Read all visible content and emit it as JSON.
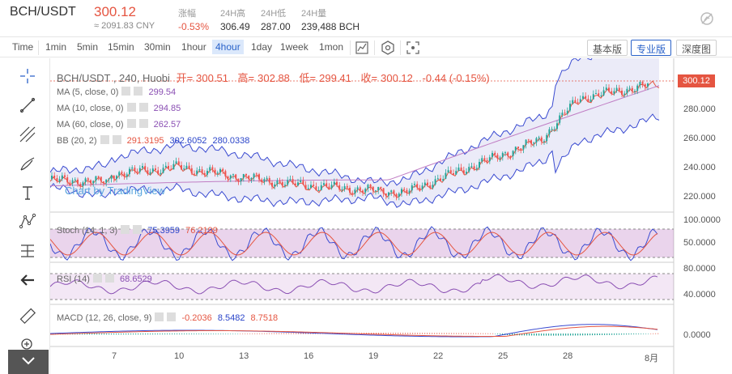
{
  "header": {
    "pair": "BCH/USDT",
    "price": "300.12",
    "cny": "≈ 2091.83 CNY",
    "stats": [
      {
        "label": "涨幅",
        "value": "-0.53%",
        "red": true
      },
      {
        "label": "24H高",
        "value": "306.49",
        "red": false
      },
      {
        "label": "24H低",
        "value": "287.00",
        "red": false
      },
      {
        "label": "24H量",
        "value": "239,488 BCH",
        "red": false
      }
    ]
  },
  "toolbar": {
    "intervals": [
      "Time",
      "1min",
      "5min",
      "15min",
      "30min",
      "1hour",
      "4hour",
      "1day",
      "1week",
      "1mon"
    ],
    "active_interval": "4hour",
    "views": [
      "基本版",
      "专业版",
      "深度图"
    ],
    "active_view": "专业版"
  },
  "legend": {
    "main": "BCH/USDT , 240, Huobi",
    "open_label": "开=",
    "open": "300.51",
    "high_label": "高=",
    "high": "302.88",
    "low_label": "低=",
    "low": "299.41",
    "close_label": "收=",
    "close": "300.12",
    "change": "-0.44 (-0.15%)",
    "ma5_label": "MA (5, close, 0)",
    "ma5": "299.54",
    "ma10_label": "MA (10, close, 0)",
    "ma10": "294.85",
    "ma60_label": "MA (60, close, 0)",
    "ma60": "262.57",
    "bb_label": "BB (20, 2)",
    "bb_mid": "291.3195",
    "bb_up": "302.6052",
    "bb_low": "280.0338",
    "stoch_label": "Stoch (14, 1, 3)",
    "stoch_k": "75.3959",
    "stoch_d": "76.2199",
    "rsi_label": "RSI (14)",
    "rsi": "68.6529",
    "macd_label": "MACD (12, 26, close, 9)",
    "macd_hist": "-0.2036",
    "macd": "8.5482",
    "macd_signal": "8.7518"
  },
  "watermark": "Chart by TradingView",
  "price_tag": "300.12",
  "price_axis": [
    "280.000",
    "260.000",
    "240.000",
    "220.000"
  ],
  "stoch_axis": [
    "100.0000",
    "50.0000"
  ],
  "rsi_axis": [
    "80.0000",
    "40.0000"
  ],
  "macd_axis": [
    "0.0000"
  ],
  "time_axis": [
    "7",
    "10",
    "13",
    "16",
    "19",
    "22",
    "25",
    "28",
    "8月"
  ],
  "colors": {
    "up": "#26a69a",
    "down": "#ef5350",
    "accent": "#2a62c9",
    "red": "#e55541"
  }
}
